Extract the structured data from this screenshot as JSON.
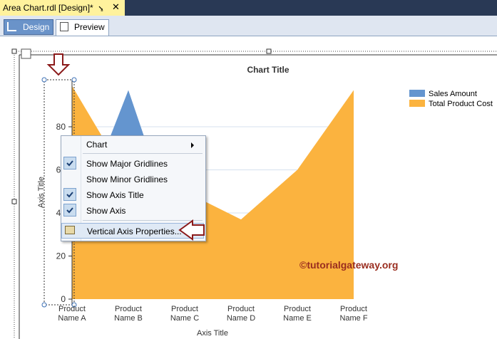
{
  "tabs": {
    "document": "Area Chart.rdl [Design]*",
    "views": [
      "Design",
      "Preview"
    ]
  },
  "chart_data": {
    "type": "area",
    "title": "Chart Title",
    "x_axis_title": "Axis Title",
    "y_axis_title": "Axis Title",
    "categories": [
      "Product Name A",
      "Product Name B",
      "Product Name C",
      "Product Name D",
      "Product Name E",
      "Product Name F"
    ],
    "series": [
      {
        "name": "Sales Amount",
        "color": "#6495cf",
        "values": [
          30,
          97,
          20,
          15,
          25,
          35
        ]
      },
      {
        "name": "Total Product Cost",
        "color": "#fbb33f",
        "values": [
          99,
          55,
          50,
          37,
          60,
          97
        ]
      }
    ],
    "ylim": [
      0,
      100
    ],
    "yticks": [
      0,
      20,
      40,
      60,
      80
    ],
    "grid": true,
    "legend": "top-right"
  },
  "context_menu": {
    "items": [
      {
        "label": "Chart",
        "submenu": true
      },
      {
        "label": "Show Major Gridlines",
        "checked": true
      },
      {
        "label": "Show Minor Gridlines",
        "checked": false
      },
      {
        "label": "Show Axis Title",
        "checked": true
      },
      {
        "label": "Show Axis",
        "checked": true
      },
      {
        "label": "Vertical Axis Properties...",
        "highlighted": true
      }
    ]
  },
  "watermark": "©tutorialgateway.org"
}
